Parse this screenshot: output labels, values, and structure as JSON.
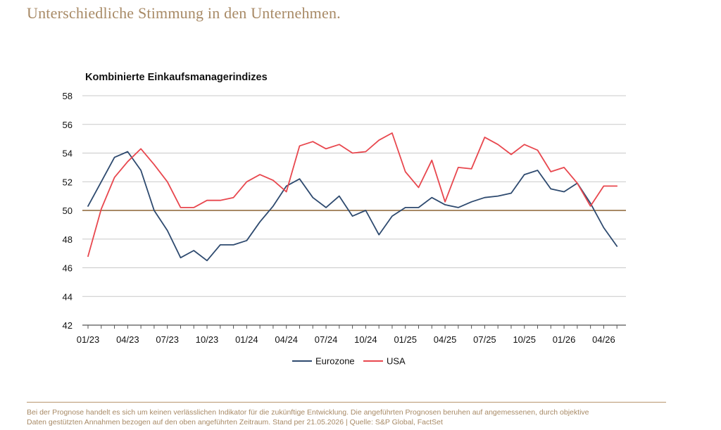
{
  "page": {
    "title": "Unterschiedliche Stimmung in den Unternehmen."
  },
  "footnote": {
    "line1": "Bei der Prognose handelt es sich um keinen verlässlichen Indikator für die zukünftige Entwicklung. Die angeführten Prognosen beruhen auf angemessenen, durch objektive",
    "line2": "Daten gestützten Annahmen bezogen auf den oben angeführten Zeitraum. Stand per 21.05.2026 | Quelle: S&P Global, FactSet"
  },
  "chart_data": {
    "type": "line",
    "title": "Kombinierte Einkaufsmanagerindizes",
    "xlabel": "",
    "ylabel": "",
    "ylim": [
      42,
      58
    ],
    "yticks": [
      42,
      44,
      46,
      48,
      50,
      52,
      54,
      56,
      58
    ],
    "grid": true,
    "legend_position": "bottom-center",
    "reference_line": {
      "value": 50,
      "color": "#a88a66"
    },
    "x": [
      "01/23",
      "02/23",
      "03/23",
      "04/23",
      "05/23",
      "06/23",
      "07/23",
      "08/23",
      "09/23",
      "10/23",
      "11/23",
      "12/23",
      "01/24",
      "02/24",
      "03/24",
      "04/24",
      "05/24",
      "06/24",
      "07/24",
      "08/24",
      "09/24",
      "10/24",
      "11/24",
      "12/24",
      "01/25",
      "02/25",
      "03/25",
      "04/25",
      "05/25",
      "06/25",
      "07/25",
      "08/25",
      "09/25",
      "10/25",
      "11/25",
      "12/25",
      "01/26",
      "02/26",
      "03/26",
      "04/26",
      "05/26"
    ],
    "xtick_labels": [
      "01/23",
      "04/23",
      "07/23",
      "10/23",
      "01/24",
      "04/24",
      "07/24",
      "10/24",
      "01/25",
      "04/25",
      "07/25",
      "10/25",
      "01/26",
      "04/26"
    ],
    "series": [
      {
        "name": "Eurozone",
        "color": "#2e4a6f",
        "values": [
          50.3,
          52.0,
          53.7,
          54.1,
          52.8,
          50.0,
          48.6,
          46.7,
          47.2,
          46.5,
          47.6,
          47.6,
          47.9,
          49.2,
          50.3,
          51.7,
          52.2,
          50.9,
          50.2,
          51.0,
          49.6,
          50.0,
          48.3,
          49.6,
          50.2,
          50.2,
          50.9,
          50.4,
          50.2,
          50.6,
          50.9,
          51.0,
          51.2,
          52.5,
          52.8,
          51.5,
          51.3,
          51.9,
          50.5,
          48.8,
          47.5
        ]
      },
      {
        "name": "USA",
        "color": "#e8474e",
        "values": [
          46.8,
          50.1,
          52.3,
          53.4,
          54.3,
          53.2,
          52.0,
          50.2,
          50.2,
          50.7,
          50.7,
          50.9,
          52.0,
          52.5,
          52.1,
          51.3,
          54.5,
          54.8,
          54.3,
          54.6,
          54.0,
          54.1,
          54.9,
          55.4,
          52.7,
          51.6,
          53.5,
          50.6,
          53.0,
          52.9,
          55.1,
          54.6,
          53.9,
          54.6,
          54.2,
          52.7,
          53.0,
          51.9,
          50.3,
          51.7,
          51.7
        ]
      }
    ]
  }
}
